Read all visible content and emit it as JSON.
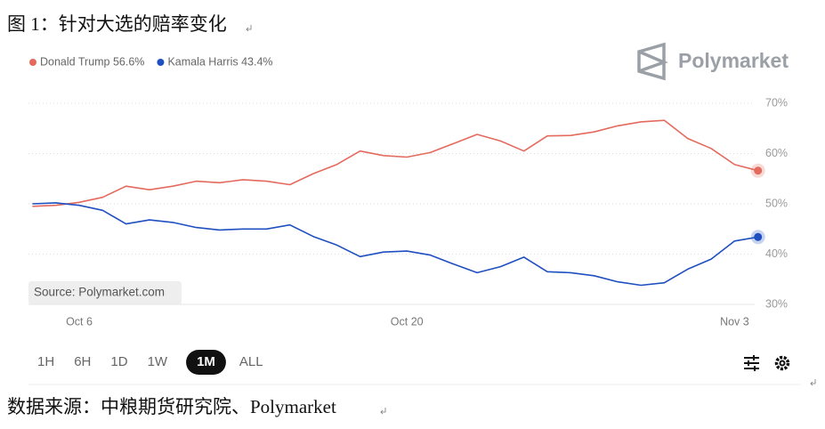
{
  "caption": "图 1：针对大选的赔率变化",
  "chart_data": {
    "type": "line",
    "brand": "Polymarket",
    "source_note": "Source: Polymarket.com",
    "categories": [
      "Oct 4",
      "Oct 5",
      "Oct 6",
      "Oct 7",
      "Oct 8",
      "Oct 9",
      "Oct 10",
      "Oct 11",
      "Oct 12",
      "Oct 13",
      "Oct 14",
      "Oct 15",
      "Oct 16",
      "Oct 17",
      "Oct 18",
      "Oct 19",
      "Oct 20",
      "Oct 21",
      "Oct 22",
      "Oct 23",
      "Oct 24",
      "Oct 25",
      "Oct 26",
      "Oct 27",
      "Oct 28",
      "Oct 29",
      "Oct 30",
      "Oct 31",
      "Nov 1",
      "Nov 2",
      "Nov 3",
      "Nov 4"
    ],
    "xticks": [
      "Oct 6",
      "Oct 20",
      "Nov 3"
    ],
    "series": [
      {
        "name": "Donald Trump 56.6%",
        "color": "#e46a5e",
        "values": [
          49.5,
          49.7,
          50.3,
          51.3,
          53.5,
          52.8,
          53.5,
          54.5,
          54.2,
          54.8,
          54.5,
          53.8,
          56.0,
          57.8,
          60.5,
          59.6,
          59.3,
          60.2,
          62.0,
          63.8,
          62.5,
          60.5,
          63.5,
          63.6,
          64.3,
          65.5,
          66.3,
          66.6,
          63.0,
          61.0,
          57.8,
          56.6
        ]
      },
      {
        "name": "Kamala Harris 43.4%",
        "color": "#1f4fc0",
        "values": [
          50.0,
          50.2,
          49.7,
          48.7,
          46.0,
          46.8,
          46.3,
          45.3,
          44.8,
          45.0,
          45.0,
          45.8,
          43.5,
          41.8,
          39.5,
          40.4,
          40.6,
          39.8,
          38.0,
          36.3,
          37.5,
          39.4,
          36.5,
          36.3,
          35.7,
          34.5,
          33.8,
          34.3,
          37.0,
          39.0,
          42.6,
          43.4
        ]
      }
    ],
    "ylim": [
      30,
      70
    ],
    "yticks": [
      {
        "value": 30,
        "label": "30%"
      },
      {
        "value": 40,
        "label": "40%"
      },
      {
        "value": 50,
        "label": "50%"
      },
      {
        "value": 60,
        "label": "60%"
      },
      {
        "value": 70,
        "label": "70%"
      }
    ],
    "grid": true,
    "ranges": [
      "1H",
      "6H",
      "1D",
      "1W",
      "1M",
      "ALL"
    ],
    "active_range": "1M"
  },
  "footer": "数据来源：中粮期货研究院、Polymarket"
}
